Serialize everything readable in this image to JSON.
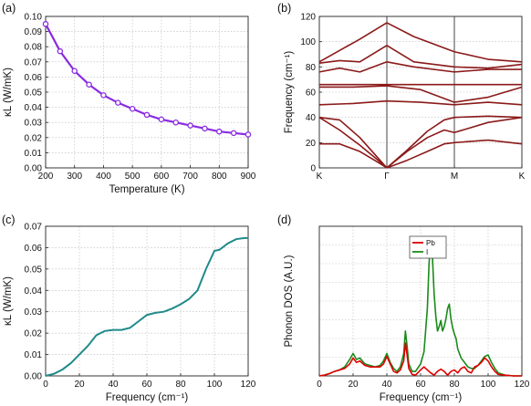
{
  "panels": [
    {
      "label": "(a)"
    },
    {
      "label": "(b)"
    },
    {
      "label": "(c)"
    },
    {
      "label": "(d)"
    }
  ],
  "chart_data": [
    {
      "id": "a",
      "type": "line",
      "xlabel": "Temperature (K)",
      "ylabel": "κL (W/mK)",
      "xlim": [
        200,
        900
      ],
      "ylim": [
        0,
        0.1
      ],
      "xticks": [
        200,
        300,
        400,
        500,
        600,
        700,
        800,
        900
      ],
      "yticks": [
        0.0,
        0.01,
        0.02,
        0.03,
        0.04,
        0.05,
        0.06,
        0.07,
        0.08,
        0.09,
        0.1
      ],
      "grid": true,
      "color": "#8a2be2",
      "markers": "open-circle",
      "series": [
        {
          "x": [
            200,
            250,
            300,
            350,
            400,
            450,
            500,
            550,
            600,
            650,
            700,
            750,
            800,
            850,
            900
          ],
          "values": [
            0.095,
            0.077,
            0.064,
            0.055,
            0.048,
            0.043,
            0.039,
            0.035,
            0.032,
            0.03,
            0.028,
            0.026,
            0.024,
            0.023,
            0.022
          ]
        }
      ]
    },
    {
      "id": "b",
      "type": "line",
      "ylabel": "Frequency (cm⁻¹)",
      "xlim": [
        0,
        3
      ],
      "ylim": [
        0,
        120
      ],
      "xticklabels": [
        "K",
        "Γ",
        "M",
        "K"
      ],
      "xtickpos": [
        0,
        1,
        2,
        3
      ],
      "yticks": [
        0,
        20,
        40,
        60,
        80,
        100,
        120
      ],
      "grid": true,
      "color": "#8b1a1a",
      "branches": [
        {
          "x": [
            0,
            0.3,
            0.6,
            0.85,
            1.0
          ],
          "values": [
            19,
            19,
            13,
            5,
            0
          ]
        },
        {
          "x": [
            0,
            0.3,
            0.6,
            0.85,
            1.0
          ],
          "values": [
            40,
            38,
            24,
            9,
            0
          ]
        },
        {
          "x": [
            0,
            0.3,
            0.6,
            0.85,
            1.0
          ],
          "values": [
            40,
            30,
            18,
            7,
            0
          ]
        },
        {
          "x": [
            1.0,
            1.3,
            1.6,
            1.85,
            2.0
          ],
          "values": [
            0,
            6,
            13,
            19,
            20
          ]
        },
        {
          "x": [
            1.0,
            1.3,
            1.6,
            1.85,
            2.0
          ],
          "values": [
            0,
            13,
            24,
            30,
            28
          ]
        },
        {
          "x": [
            1.0,
            1.3,
            1.6,
            1.85,
            2.0
          ],
          "values": [
            0,
            14,
            29,
            38,
            40
          ]
        },
        {
          "x": [
            2.0,
            2.5,
            3.0
          ],
          "values": [
            20,
            22,
            19
          ]
        },
        {
          "x": [
            2.0,
            2.5,
            3.0
          ],
          "values": [
            28,
            36,
            40
          ]
        },
        {
          "x": [
            2.0,
            2.5,
            3.0
          ],
          "values": [
            40,
            41,
            40
          ]
        },
        {
          "x": [
            0,
            0.5,
            1.0,
            1.5,
            2.0,
            2.5,
            3.0
          ],
          "values": [
            50,
            51,
            53,
            52,
            50,
            52,
            50
          ]
        },
        {
          "x": [
            0,
            0.5,
            1.0,
            1.5,
            2.0,
            2.5,
            3.0
          ],
          "values": [
            64,
            64,
            65,
            62,
            52,
            56,
            64
          ]
        },
        {
          "x": [
            0,
            0.5,
            1.0,
            1.5,
            2.0,
            2.5,
            3.0
          ],
          "values": [
            66,
            66,
            66,
            66,
            66,
            66,
            66
          ]
        },
        {
          "x": [
            0,
            0.3,
            0.6,
            1.0,
            1.4,
            2.0,
            2.5,
            3.0
          ],
          "values": [
            76,
            79,
            76,
            84,
            80,
            76,
            78,
            78
          ]
        },
        {
          "x": [
            0,
            0.3,
            0.6,
            1.0,
            1.4,
            2.0,
            2.5,
            3.0
          ],
          "values": [
            83,
            85,
            84,
            97,
            84,
            80,
            79,
            82
          ]
        },
        {
          "x": [
            0,
            0.3,
            0.6,
            1.0,
            1.4,
            2.0,
            2.5,
            3.0
          ],
          "values": [
            84,
            93,
            102,
            115,
            104,
            92,
            86,
            84
          ]
        }
      ]
    },
    {
      "id": "c",
      "type": "line",
      "xlabel": "Frequency (cm⁻¹)",
      "ylabel": "κL (W/mK)",
      "xlim": [
        0,
        120
      ],
      "ylim": [
        0,
        0.07
      ],
      "xticks": [
        0,
        20,
        40,
        60,
        80,
        100,
        120
      ],
      "yticks": [
        0.0,
        0.01,
        0.02,
        0.03,
        0.04,
        0.05,
        0.06,
        0.07
      ],
      "grid": true,
      "color": "#1f8a8a",
      "series": [
        {
          "x": [
            0,
            5,
            10,
            15,
            20,
            25,
            30,
            35,
            40,
            45,
            50,
            55,
            60,
            65,
            70,
            75,
            80,
            85,
            90,
            95,
            100,
            103,
            108,
            113,
            118,
            120
          ],
          "values": [
            0,
            0.001,
            0.003,
            0.006,
            0.01,
            0.014,
            0.019,
            0.021,
            0.0215,
            0.0215,
            0.0225,
            0.0255,
            0.0285,
            0.0295,
            0.03,
            0.0315,
            0.0335,
            0.036,
            0.04,
            0.05,
            0.0585,
            0.059,
            0.062,
            0.064,
            0.0645,
            0.0645
          ]
        }
      ]
    },
    {
      "id": "d",
      "type": "line",
      "xlabel": "Frequency (cm⁻¹)",
      "ylabel": "Phonon DOS (A.U.)",
      "xlim": [
        0,
        120
      ],
      "ylim": [
        0,
        1
      ],
      "xticks": [
        0,
        20,
        40,
        60,
        80,
        100,
        120
      ],
      "grid": true,
      "legend": "top-center",
      "series": [
        {
          "name": "Pb",
          "color": "#e00000",
          "x": [
            0,
            3,
            6,
            9,
            12,
            15,
            18,
            20,
            22,
            24,
            27,
            30,
            33,
            36,
            38,
            40,
            42,
            44,
            46,
            48,
            50,
            51,
            52,
            53,
            55,
            57,
            60,
            62,
            64,
            66,
            68,
            70,
            72,
            74,
            76,
            78,
            80,
            82,
            84,
            86,
            88,
            90,
            92,
            94,
            96,
            98,
            100,
            102,
            104,
            106,
            110,
            115,
            120
          ],
          "values": [
            0,
            0.005,
            0.015,
            0.03,
            0.04,
            0.05,
            0.08,
            0.12,
            0.09,
            0.1,
            0.07,
            0.06,
            0.06,
            0.06,
            0.08,
            0.13,
            0.08,
            0.03,
            0.02,
            0.04,
            0.1,
            0.22,
            0.14,
            0.05,
            0.01,
            0.005,
            0.04,
            0.06,
            0.04,
            0.02,
            0.005,
            0.03,
            0.045,
            0.03,
            0.005,
            0.03,
            0.04,
            0.02,
            0.05,
            0.06,
            0.03,
            0.02,
            0.06,
            0.07,
            0.09,
            0.12,
            0.1,
            0.06,
            0.03,
            0.01,
            0.005,
            0,
            0
          ]
        },
        {
          "name": "I",
          "color": "#1a8a1a",
          "x": [
            0,
            3,
            6,
            9,
            12,
            15,
            18,
            20,
            22,
            24,
            27,
            30,
            33,
            36,
            38,
            40,
            42,
            44,
            46,
            48,
            50,
            51,
            52,
            53,
            55,
            57,
            60,
            62,
            64,
            65,
            66,
            67,
            68,
            69,
            70,
            71,
            72,
            73,
            74,
            75,
            76,
            77,
            78,
            79,
            80,
            81,
            82,
            84,
            86,
            88,
            90,
            92,
            94,
            96,
            98,
            100,
            102,
            104,
            106,
            110,
            115,
            120
          ],
          "values": [
            0,
            0.005,
            0.015,
            0.03,
            0.04,
            0.06,
            0.11,
            0.15,
            0.11,
            0.12,
            0.08,
            0.07,
            0.06,
            0.07,
            0.1,
            0.15,
            0.09,
            0.05,
            0.03,
            0.06,
            0.15,
            0.3,
            0.2,
            0.08,
            0.03,
            0.03,
            0.08,
            0.16,
            0.45,
            0.75,
            0.93,
            0.8,
            0.55,
            0.4,
            0.3,
            0.33,
            0.37,
            0.3,
            0.33,
            0.38,
            0.45,
            0.48,
            0.38,
            0.32,
            0.28,
            0.25,
            0.18,
            0.12,
            0.09,
            0.06,
            0.05,
            0.05,
            0.07,
            0.1,
            0.13,
            0.14,
            0.09,
            0.05,
            0.02,
            0.005,
            0,
            0
          ]
        }
      ]
    }
  ]
}
